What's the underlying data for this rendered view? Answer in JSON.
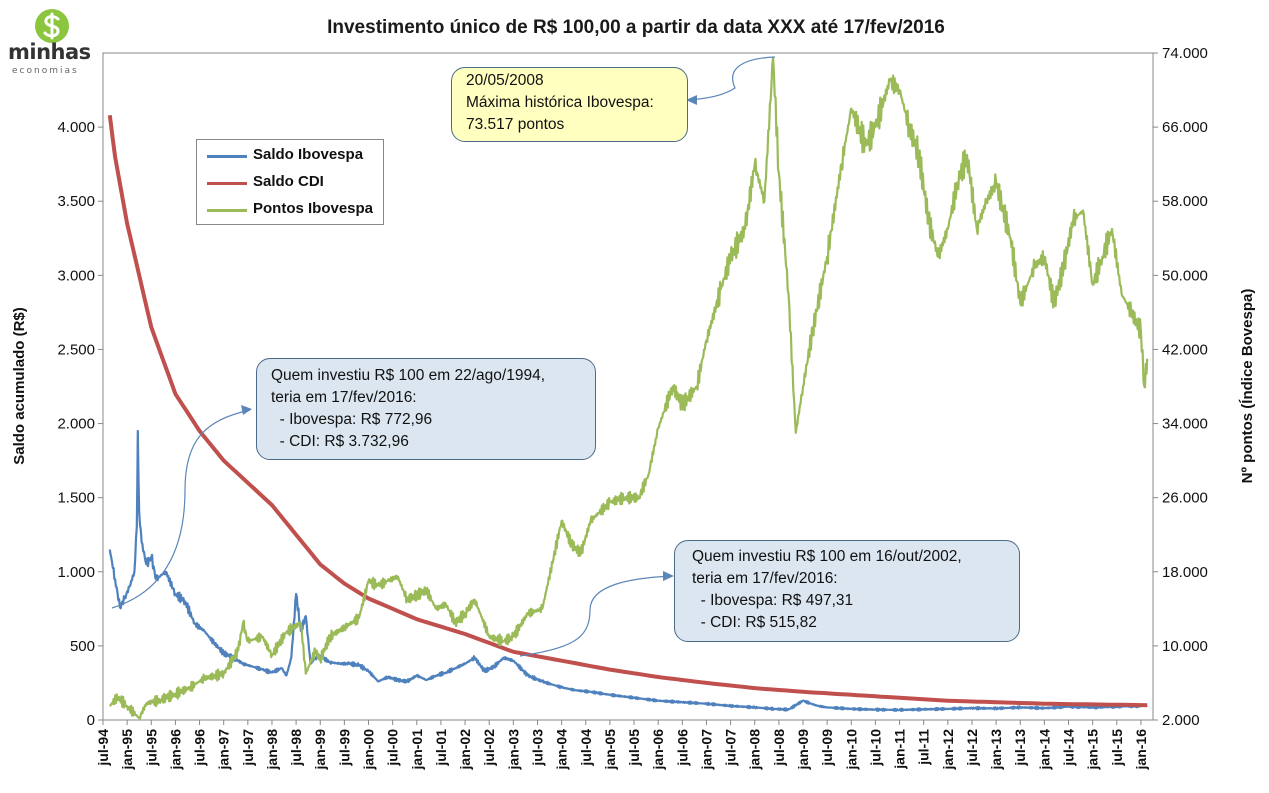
{
  "logo": {
    "word": "minhas",
    "sub": "economias",
    "icon": "dollar-sign-icon"
  },
  "chart_data": {
    "type": "line",
    "title": "Investimento único de R$ 100,00 a partir da data XXX até 17/fev/2016",
    "ylabel": "Saldo acumulado (R$)",
    "y2label": "Nº pontos (Índice Bovespa)",
    "ylim": [
      0,
      4500
    ],
    "y2lim": [
      2000,
      74000
    ],
    "xlim": [
      1994.5,
      2016.25
    ],
    "y_ticks": [
      0,
      500,
      1000,
      1500,
      2000,
      2500,
      3000,
      3500,
      4000
    ],
    "y_tick_labels": [
      "0",
      "500",
      "1.000",
      "1.500",
      "2.000",
      "2.500",
      "3.000",
      "3.500",
      "4.000"
    ],
    "y2_ticks": [
      2000,
      10000,
      18000,
      26000,
      34000,
      42000,
      50000,
      58000,
      66000,
      74000
    ],
    "y2_tick_labels": [
      "2.000",
      "10.000",
      "18.000",
      "26.000",
      "34.000",
      "42.000",
      "50.000",
      "58.000",
      "66.000",
      "74.000"
    ],
    "x_tick_labels": [
      "jul-94",
      "jan-95",
      "jul-95",
      "jan-96",
      "jul-96",
      "jan-97",
      "jul-97",
      "jan-98",
      "jul-98",
      "jan-99",
      "jul-99",
      "jan-00",
      "jul-00",
      "jan-01",
      "jul-01",
      "jan-02",
      "jul-02",
      "jan-03",
      "jul-03",
      "jan-04",
      "jul-04",
      "jan-05",
      "jul-05",
      "jan-06",
      "jul-06",
      "jan-07",
      "jul-07",
      "jan-08",
      "jul-08",
      "jan-09",
      "jul-09",
      "jan-10",
      "jul-10",
      "jan-11",
      "jul-11",
      "jan-12",
      "jul-12",
      "jan-13",
      "jul-13",
      "jan-14",
      "jul-14",
      "jan-15",
      "jul-15",
      "jan-16"
    ],
    "legend": [
      {
        "name": "Saldo Ibovespa",
        "color": "#4f81bd"
      },
      {
        "name": "Saldo CDI",
        "color": "#c0504d"
      },
      {
        "name": "Pontos Ibovespa",
        "color": "#9bbb59"
      }
    ],
    "series": [
      {
        "name": "Saldo Ibovespa",
        "axis": "left",
        "color": "#4f81bd",
        "x": [
          1994.64,
          1994.75,
          1994.85,
          1994.95,
          1995.05,
          1995.15,
          1995.2,
          1995.22,
          1995.25,
          1995.3,
          1995.4,
          1995.5,
          1995.6,
          1995.8,
          1996.0,
          1996.2,
          1996.4,
          1996.6,
          1996.8,
          1997.0,
          1997.2,
          1997.4,
          1997.6,
          1997.8,
          1998.0,
          1998.2,
          1998.3,
          1998.4,
          1998.5,
          1998.6,
          1998.7,
          1998.8,
          1998.9,
          1999.0,
          1999.2,
          1999.4,
          1999.6,
          1999.8,
          2000.0,
          2000.2,
          2000.4,
          2000.6,
          2000.8,
          2001.0,
          2001.2,
          2001.4,
          2001.6,
          2001.8,
          2002.0,
          2002.2,
          2002.4,
          2002.6,
          2002.8,
          2003.0,
          2003.3,
          2003.6,
          2004.0,
          2004.3,
          2004.6,
          2005.0,
          2005.5,
          2006.0,
          2006.5,
          2007.0,
          2007.5,
          2008.0,
          2008.4,
          2008.7,
          2009.0,
          2009.3,
          2009.5,
          2010.0,
          2010.5,
          2011.0,
          2011.5,
          2012.0,
          2012.5,
          2013.0,
          2013.5,
          2014.0,
          2014.5,
          2015.0,
          2015.5,
          2016.0,
          2016.13
        ],
        "y": [
          1150,
          950,
          760,
          820,
          900,
          1000,
          1300,
          1950,
          1400,
          1200,
          1050,
          1100,
          950,
          1000,
          850,
          800,
          650,
          600,
          520,
          450,
          420,
          380,
          360,
          340,
          320,
          350,
          300,
          420,
          850,
          600,
          700,
          380,
          420,
          430,
          390,
          380,
          380,
          370,
          330,
          260,
          290,
          270,
          260,
          300,
          270,
          300,
          320,
          350,
          380,
          420,
          330,
          360,
          420,
          400,
          300,
          260,
          220,
          200,
          190,
          170,
          150,
          130,
          120,
          110,
          95,
          85,
          75,
          70,
          130,
          95,
          85,
          75,
          70,
          68,
          72,
          75,
          80,
          78,
          85,
          80,
          90,
          85,
          90,
          95,
          99
        ]
      },
      {
        "name": "Saldo CDI",
        "axis": "left",
        "color": "#c0504d",
        "x": [
          1994.64,
          1994.75,
          1995.0,
          1995.25,
          1995.5,
          1996.0,
          1996.5,
          1997.0,
          1997.5,
          1998.0,
          1998.5,
          1999.0,
          1999.5,
          2000.0,
          2001.0,
          2002.0,
          2003.0,
          2004.0,
          2005.0,
          2006.0,
          2007.0,
          2008.0,
          2009.0,
          2010.0,
          2011.0,
          2012.0,
          2013.0,
          2014.0,
          2015.0,
          2016.13
        ],
        "y": [
          4080,
          3800,
          3350,
          3000,
          2650,
          2200,
          1950,
          1750,
          1600,
          1450,
          1250,
          1050,
          920,
          820,
          680,
          580,
          460,
          400,
          340,
          290,
          250,
          215,
          190,
          170,
          150,
          130,
          120,
          110,
          105,
          100
        ]
      },
      {
        "name": "Pontos Ibovespa",
        "axis": "right",
        "color": "#9bbb59",
        "x": [
          1994.64,
          1994.8,
          1995.0,
          1995.25,
          1995.4,
          1995.7,
          1996.0,
          1996.3,
          1996.6,
          1997.0,
          1997.3,
          1997.4,
          1997.5,
          1997.8,
          1998.0,
          1998.3,
          1998.6,
          1998.7,
          1998.9,
          1999.0,
          1999.2,
          1999.5,
          1999.8,
          2000.0,
          2000.2,
          2000.4,
          2000.6,
          2000.8,
          2001.0,
          2001.2,
          2001.4,
          2001.6,
          2001.8,
          2002.0,
          2002.2,
          2002.5,
          2002.8,
          2003.0,
          2003.3,
          2003.6,
          2004.0,
          2004.2,
          2004.4,
          2004.6,
          2005.0,
          2005.3,
          2005.6,
          2005.8,
          2006.0,
          2006.3,
          2006.5,
          2006.8,
          2007.0,
          2007.3,
          2007.5,
          2007.8,
          2008.0,
          2008.2,
          2008.38,
          2008.5,
          2008.7,
          2008.85,
          2009.0,
          2009.2,
          2009.5,
          2009.8,
          2010.0,
          2010.3,
          2010.5,
          2010.8,
          2011.0,
          2011.2,
          2011.4,
          2011.6,
          2011.8,
          2012.0,
          2012.2,
          2012.4,
          2012.6,
          2012.8,
          2013.0,
          2013.3,
          2013.5,
          2013.8,
          2014.0,
          2014.2,
          2014.4,
          2014.6,
          2014.8,
          2015.0,
          2015.2,
          2015.4,
          2015.6,
          2015.8,
          2016.0,
          2016.07,
          2016.13
        ],
        "y": [
          3500,
          4500,
          3500,
          2200,
          3800,
          4200,
          4800,
          5500,
          6500,
          7000,
          9500,
          12500,
          10500,
          11000,
          9000,
          11500,
          12500,
          7000,
          9500,
          8500,
          11000,
          12000,
          13000,
          17000,
          16500,
          17000,
          17500,
          15000,
          15500,
          16000,
          14000,
          14500,
          12500,
          13500,
          15000,
          11000,
          10500,
          11000,
          13500,
          14000,
          23500,
          21000,
          20000,
          23500,
          25500,
          26000,
          26000,
          28500,
          33500,
          38000,
          36000,
          38000,
          43000,
          48500,
          52000,
          55000,
          62000,
          58000,
          73517,
          61000,
          48000,
          33000,
          38000,
          44000,
          52000,
          62000,
          68000,
          64000,
          66000,
          71000,
          70000,
          66000,
          63000,
          56000,
          52000,
          55000,
          60000,
          63000,
          55000,
          58000,
          60000,
          54000,
          47000,
          51000,
          52000,
          47000,
          51000,
          56000,
          57000,
          49000,
          52000,
          55000,
          48000,
          46000,
          44000,
          38000,
          41000
        ]
      }
    ],
    "annotations": [
      {
        "lines": [
          "20/05/2008",
          "Máxima histórica Ibovespa:",
          "73.517 pontos"
        ]
      },
      {
        "lines": [
          "Quem investiu R$ 100 em 22/ago/1994,",
          "teria em 17/fev/2016:",
          "  - Ibovespa: R$ 772,96",
          "  - CDI: R$ 3.732,96"
        ]
      },
      {
        "lines": [
          "Quem investiu R$ 100 em 16/out/2002,",
          "teria em 17/fev/2016:",
          "  - Ibovespa: R$ 497,31",
          "  - CDI: R$ 515,82"
        ]
      }
    ]
  }
}
